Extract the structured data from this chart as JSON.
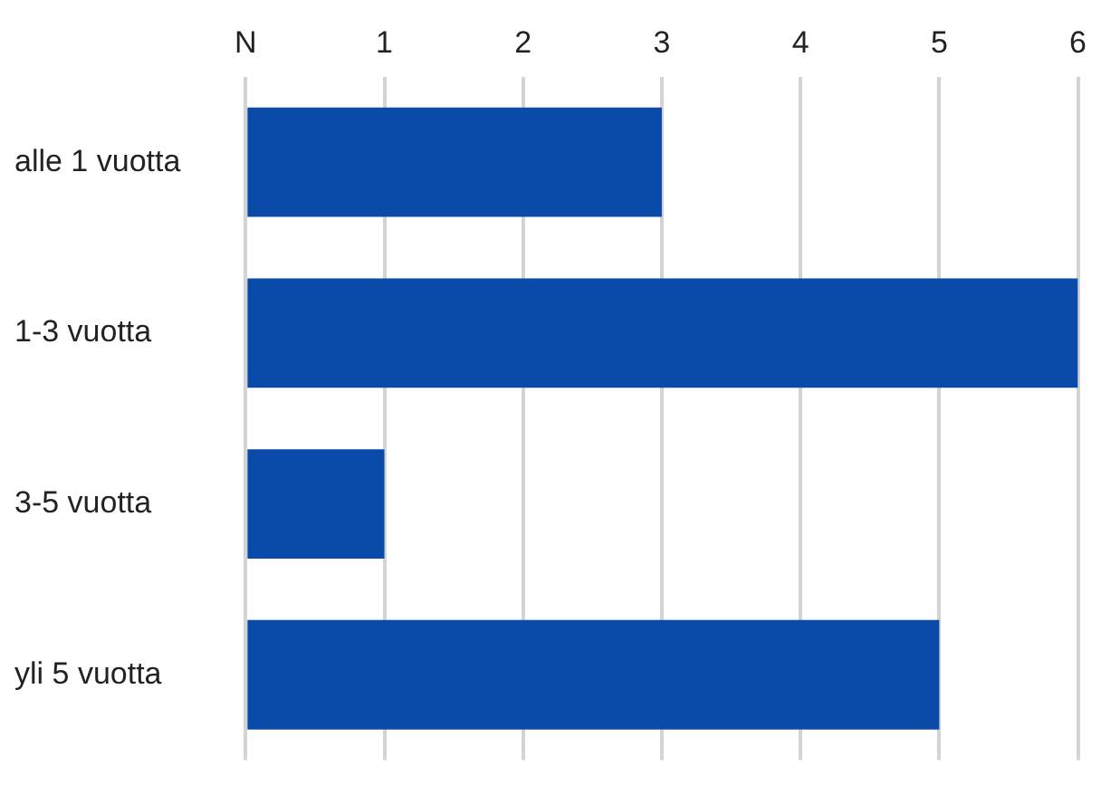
{
  "chart_data": {
    "type": "bar",
    "orientation": "horizontal",
    "categories": [
      "alle 1 vuotta",
      "1-3 vuotta",
      "3-5 vuotta",
      "yli 5 vuotta"
    ],
    "values": [
      3,
      6,
      1,
      5
    ],
    "color": "#0a4aa8",
    "xlim": [
      0,
      6
    ],
    "xticks": [
      {
        "value": 0,
        "label": "N"
      },
      1,
      2,
      3,
      4,
      5,
      6
    ],
    "grid": "x"
  }
}
